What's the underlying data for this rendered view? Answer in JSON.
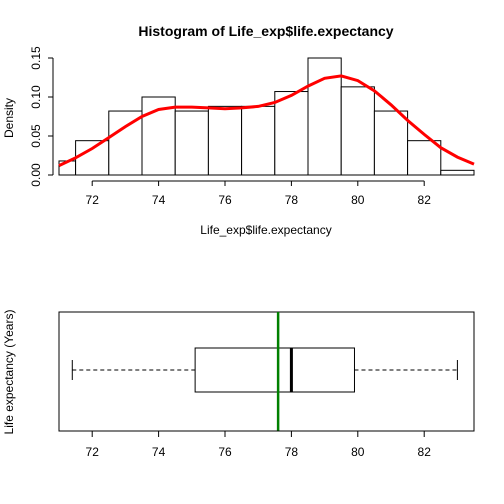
{
  "chart_data": [
    {
      "type": "bar",
      "subtype": "histogram-with-density",
      "title": "Histogram of Life_exp$life.expectancy",
      "xlabel": "Life_exp$life.expectancy",
      "ylabel": "Density",
      "xlim": [
        71,
        83.5
      ],
      "ylim": [
        0,
        0.15
      ],
      "x_ticks": [
        "72",
        "74",
        "76",
        "78",
        "80",
        "82"
      ],
      "y_ticks": [
        "0.00",
        "0.05",
        "0.10",
        "0.15"
      ],
      "bins": [
        {
          "x0": 70.5,
          "x1": 71.5,
          "density": 0.018
        },
        {
          "x0": 71.5,
          "x1": 72.5,
          "density": 0.044
        },
        {
          "x0": 72.5,
          "x1": 73.5,
          "density": 0.082
        },
        {
          "x0": 73.5,
          "x1": 74.5,
          "density": 0.1
        },
        {
          "x0": 74.5,
          "x1": 75.5,
          "density": 0.082
        },
        {
          "x0": 75.5,
          "x1": 76.5,
          "density": 0.088
        },
        {
          "x0": 76.5,
          "x1": 77.5,
          "density": 0.088
        },
        {
          "x0": 77.5,
          "x1": 78.5,
          "density": 0.107
        },
        {
          "x0": 78.5,
          "x1": 79.5,
          "density": 0.15
        },
        {
          "x0": 79.5,
          "x1": 80.5,
          "density": 0.113
        },
        {
          "x0": 80.5,
          "x1": 81.5,
          "density": 0.082
        },
        {
          "x0": 81.5,
          "x1": 82.5,
          "density": 0.044
        },
        {
          "x0": 82.5,
          "x1": 83.5,
          "density": 0.006
        }
      ],
      "density_curve": {
        "color": "#ff0000",
        "x": [
          70.9,
          71.5,
          72,
          72.5,
          73,
          73.5,
          74,
          74.5,
          75,
          75.5,
          76,
          76.5,
          77,
          77.5,
          78,
          78.5,
          79,
          79.5,
          80,
          80.5,
          81,
          81.5,
          82,
          82.5,
          83,
          83.5
        ],
        "y": [
          0.012,
          0.022,
          0.034,
          0.048,
          0.062,
          0.075,
          0.084,
          0.087,
          0.087,
          0.086,
          0.085,
          0.086,
          0.088,
          0.093,
          0.102,
          0.114,
          0.124,
          0.127,
          0.121,
          0.108,
          0.09,
          0.07,
          0.052,
          0.035,
          0.023,
          0.014
        ]
      },
      "grid": false
    },
    {
      "type": "boxplot",
      "horizontal": true,
      "ylabel": "Life expectancy (Years)",
      "xlim": [
        71,
        83.5
      ],
      "x_ticks": [
        "72",
        "74",
        "76",
        "78",
        "80",
        "82"
      ],
      "min": 71.4,
      "q1": 75.1,
      "median": 78.0,
      "q3": 79.9,
      "max": 83.0,
      "mean_line": {
        "value": 77.6,
        "color": "#008000"
      }
    }
  ]
}
